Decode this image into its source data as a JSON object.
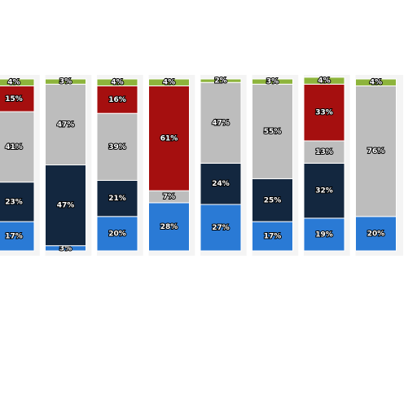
{
  "chart_data": {
    "type": "stacked-bar",
    "series": [
      {
        "color": "#2a7ad5",
        "values": [
          17,
          3,
          20,
          28,
          27,
          17,
          19,
          20
        ],
        "value_labels": [
          "17%",
          "3%",
          "20%",
          "28%",
          "27%",
          "17%",
          "19%",
          "20%"
        ]
      },
      {
        "color": "#13273f",
        "values": [
          23,
          47,
          21,
          null,
          24,
          25,
          32,
          null
        ],
        "value_labels": [
          "23%",
          "47%",
          "21%",
          null,
          "24%",
          "25%",
          "32%",
          null
        ]
      },
      {
        "color": "#bdbdbd",
        "values": [
          41,
          47,
          39,
          7,
          47,
          55,
          13,
          76
        ],
        "value_labels": [
          "41%",
          "47%",
          "39%",
          "7%",
          "47%",
          "55%",
          "13%",
          "76%"
        ]
      },
      {
        "color": "#a50f0f",
        "values": [
          15,
          null,
          16,
          61,
          null,
          null,
          33,
          null
        ],
        "value_labels": [
          "15%",
          null,
          "16%",
          "61%",
          null,
          null,
          "33%",
          null
        ]
      },
      {
        "color": "#8db43b",
        "values": [
          4,
          3,
          4,
          4,
          2,
          3,
          4,
          4
        ],
        "value_labels": [
          "4%",
          "3%",
          "4%",
          "4%",
          "2%",
          "3%",
          "4%",
          "4%"
        ]
      }
    ]
  }
}
